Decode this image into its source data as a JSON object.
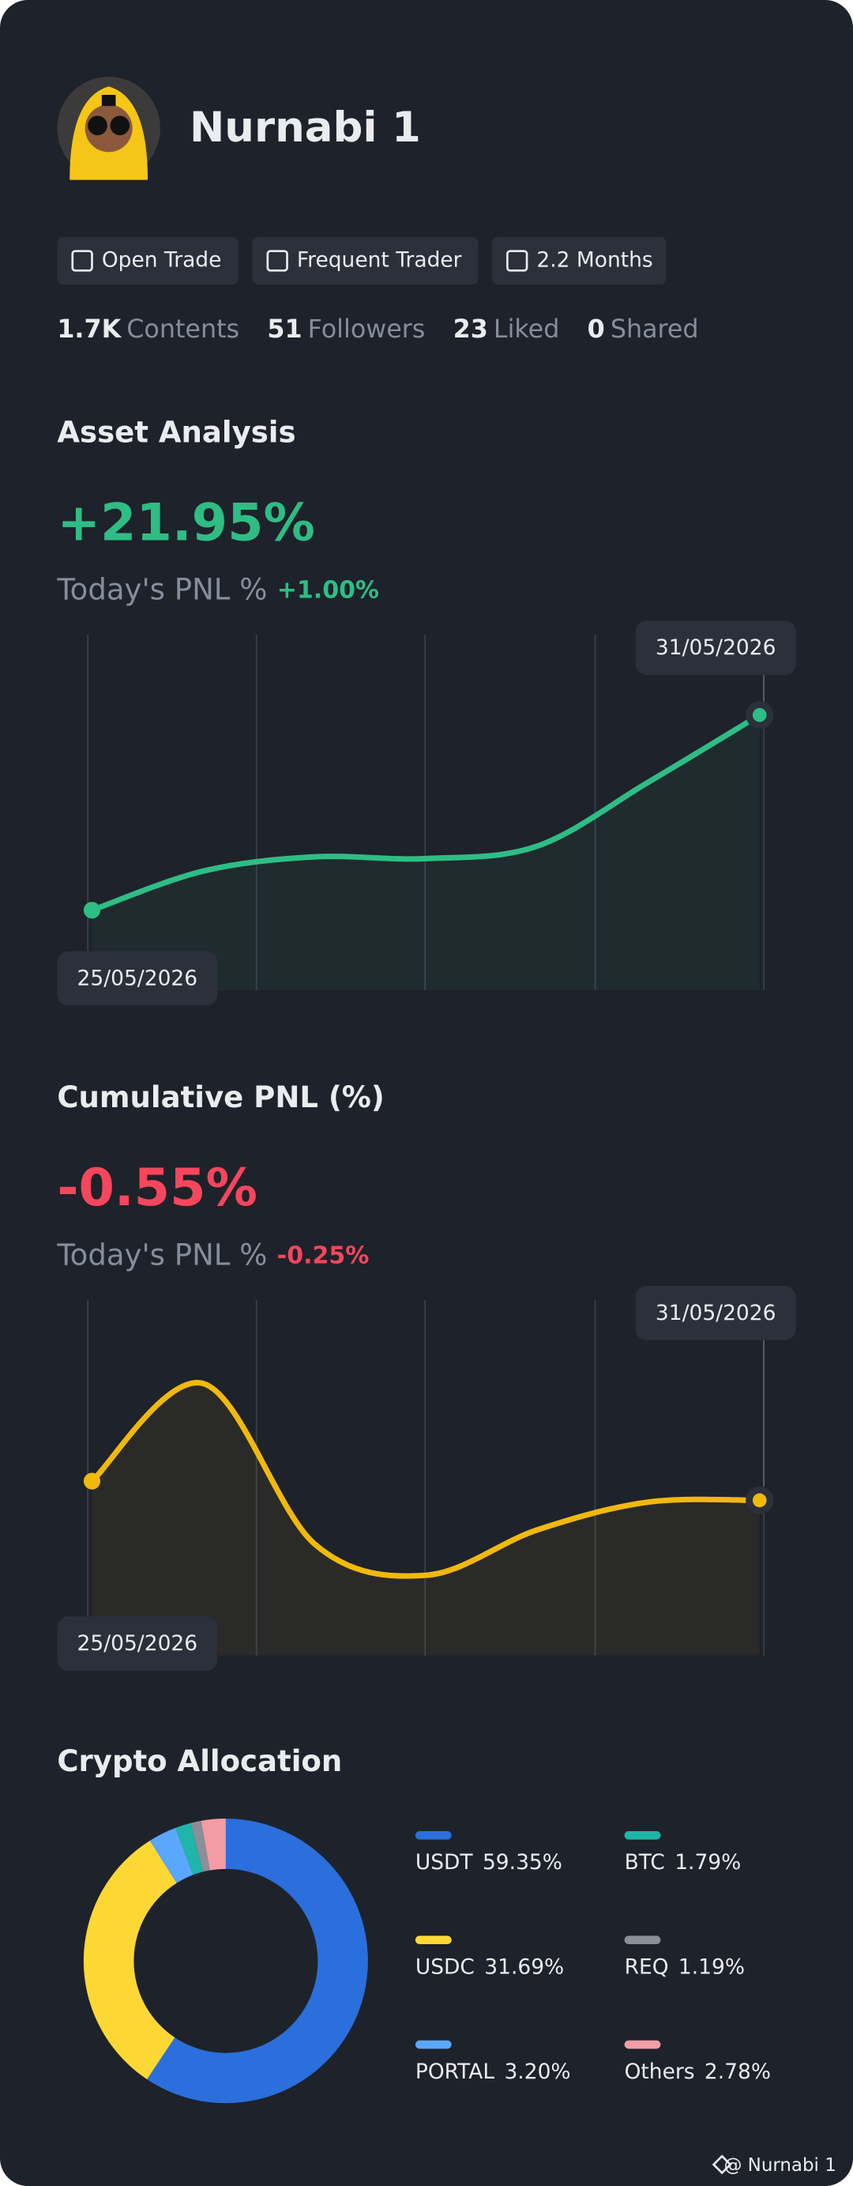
{
  "profile": {
    "name": "Nurnabi 1",
    "tags": [
      "Open Trade",
      "Frequent Trader",
      "2.2 Months"
    ],
    "stats": [
      {
        "value": "1.7K",
        "label": "Contents"
      },
      {
        "value": "51",
        "label": "Followers"
      },
      {
        "value": "23",
        "label": "Liked"
      },
      {
        "value": "0",
        "label": "Shared"
      }
    ]
  },
  "chart_data": [
    {
      "type": "line",
      "title": "Asset Analysis",
      "headline": "+21.95%",
      "subtitle": "Today's PNL %",
      "change": "+1.00%",
      "accent": "#2ebd85",
      "categories": [
        "25/05/2026",
        null,
        null,
        null,
        null,
        null,
        "31/05/2026"
      ],
      "values": [
        0,
        4.4,
        6.0,
        5.8,
        7.2,
        14.4,
        21.95
      ],
      "color": "#2ebd85",
      "ylim": [
        -9,
        31
      ]
    },
    {
      "type": "line",
      "title": "Cumulative PNL (%)",
      "headline": "-0.55%",
      "subtitle": "Today's PNL %",
      "change": "-0.25%",
      "accent": "#f6465d",
      "categories": [
        "25/05/2026",
        null,
        null,
        null,
        null,
        null,
        "31/05/2026"
      ],
      "values": [
        0,
        2.8,
        -1.8,
        -2.7,
        -1.4,
        -0.6,
        -0.55
      ],
      "color": "#f0b90b",
      "ylim": [
        -5,
        5.2
      ]
    },
    {
      "type": "pie",
      "title": "Crypto Allocation",
      "categories": [
        "USDT",
        "USDC",
        "PORTAL",
        "BTC",
        "REQ",
        "Others"
      ],
      "values": [
        59.35,
        31.69,
        3.2,
        1.79,
        1.19,
        2.78
      ],
      "value_labels": [
        "59.35%",
        "31.69%",
        "3.20%",
        "1.79%",
        "1.19%",
        "2.78%"
      ],
      "colors": [
        "#2a6fdb",
        "#fdd835",
        "#5aa7ff",
        "#1fb5a8",
        "#8a8f98",
        "#f49ca5"
      ]
    }
  ],
  "watermark": "@ Nurnabi 1"
}
